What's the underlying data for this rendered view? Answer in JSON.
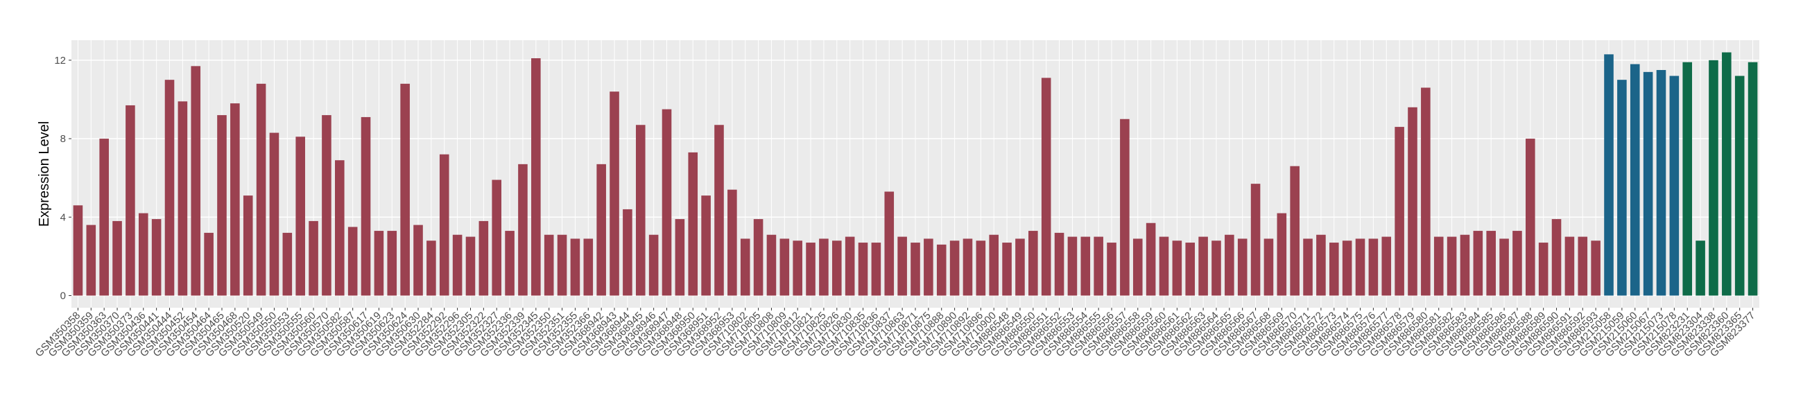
{
  "chart_data": {
    "type": "bar",
    "ylabel": "Expression Level",
    "ylim": [
      -0.62,
      13.02
    ],
    "yticks": [
      0,
      4,
      8,
      12
    ],
    "grid": true,
    "groups": [
      {
        "color": "#9b4150",
        "categories": [
          "GSM350358",
          "GSM350359",
          "GSM350363",
          "GSM350370",
          "GSM350373",
          "GSM350436",
          "GSM350441",
          "GSM350444",
          "GSM350452",
          "GSM350454",
          "GSM350464",
          "GSM350465",
          "GSM350468",
          "GSM350520",
          "GSM350549",
          "GSM350550",
          "GSM350553",
          "GSM350555",
          "GSM350560",
          "GSM350570",
          "GSM350582",
          "GSM350587",
          "GSM350617",
          "GSM350619",
          "GSM350623",
          "GSM350624",
          "GSM350630",
          "GSM352284",
          "GSM352292",
          "GSM352296",
          "GSM352305",
          "GSM352322",
          "GSM352327",
          "GSM352336",
          "GSM352339",
          "GSM352345",
          "GSM352350",
          "GSM352351",
          "GSM352355",
          "GSM352366",
          "GSM368942",
          "GSM368943",
          "GSM368944",
          "GSM368945",
          "GSM368946",
          "GSM368947",
          "GSM368948",
          "GSM368950",
          "GSM368951",
          "GSM368952",
          "GSM368953",
          "GSM710802",
          "GSM710805",
          "GSM710808",
          "GSM710809",
          "GSM710812",
          "GSM710821",
          "GSM710825",
          "GSM710826",
          "GSM710830",
          "GSM710835",
          "GSM710836",
          "GSM710837",
          "GSM710863",
          "GSM710871",
          "GSM710875",
          "GSM710888",
          "GSM710890",
          "GSM710892",
          "GSM710896",
          "GSM710900",
          "GSM886548",
          "GSM886549",
          "GSM886550",
          "GSM886551",
          "GSM886552",
          "GSM886553",
          "GSM886554",
          "GSM886555",
          "GSM886556",
          "GSM886557",
          "GSM886558",
          "GSM886559",
          "GSM886560",
          "GSM886561",
          "GSM886562",
          "GSM886563",
          "GSM886564",
          "GSM886565",
          "GSM886566",
          "GSM886567",
          "GSM886568",
          "GSM886569",
          "GSM886570",
          "GSM886571",
          "GSM886572",
          "GSM886573",
          "GSM886574",
          "GSM886575",
          "GSM886576",
          "GSM886577",
          "GSM886578",
          "GSM886579",
          "GSM886580",
          "GSM886581",
          "GSM886582",
          "GSM886583",
          "GSM886584",
          "GSM886585",
          "GSM886586",
          "GSM886587",
          "GSM886588",
          "GSM886589",
          "GSM886590",
          "GSM886591",
          "GSM886592",
          "GSM886593"
        ],
        "values": [
          4.6,
          3.6,
          8.0,
          3.8,
          9.7,
          4.2,
          3.9,
          11.0,
          9.9,
          11.7,
          3.2,
          9.2,
          9.8,
          5.1,
          10.8,
          8.3,
          3.2,
          8.1,
          3.8,
          9.2,
          6.9,
          3.5,
          9.1,
          3.3,
          3.3,
          10.8,
          3.6,
          2.8,
          7.2,
          3.1,
          3.0,
          3.8,
          5.9,
          3.3,
          6.7,
          12.1,
          3.1,
          3.1,
          2.9,
          2.9,
          6.7,
          10.4,
          4.4,
          8.7,
          3.1,
          9.5,
          3.9,
          7.3,
          5.1,
          8.7,
          5.4,
          2.9,
          3.9,
          3.1,
          2.9,
          2.8,
          2.7,
          2.9,
          2.8,
          3.0,
          2.7,
          2.7,
          5.3,
          3.0,
          2.7,
          2.9,
          2.6,
          2.8,
          2.9,
          2.8,
          3.1,
          2.7,
          2.9,
          3.3,
          11.1,
          3.2,
          3.0,
          3.0,
          3.0,
          2.7,
          9.0,
          2.9,
          3.7,
          3.0,
          2.8,
          2.7,
          3.0,
          2.8,
          3.1,
          2.9,
          5.7,
          2.9,
          4.2,
          6.6,
          2.9,
          3.1,
          2.7,
          2.8,
          2.9,
          2.9,
          3.0,
          8.6,
          9.6,
          10.6,
          3.0,
          3.0,
          3.1,
          3.3,
          3.3,
          2.9,
          3.3,
          8.0,
          2.7,
          3.9,
          3.0,
          3.0,
          2.8
        ]
      },
      {
        "color": "#1b6489",
        "categories": [
          "GSM215058",
          "GSM215059",
          "GSM215060",
          "GSM215067",
          "GSM215073",
          "GSM215078"
        ],
        "values": [
          12.3,
          11.0,
          11.8,
          11.4,
          11.5,
          11.2
        ]
      },
      {
        "color": "#0e6b48",
        "categories": [
          "GSM823231",
          "GSM823304",
          "GSM823338",
          "GSM823360",
          "GSM823365",
          "GSM823377"
        ],
        "values": [
          11.9,
          2.8,
          12.0,
          12.4,
          11.2,
          11.9
        ]
      }
    ]
  }
}
